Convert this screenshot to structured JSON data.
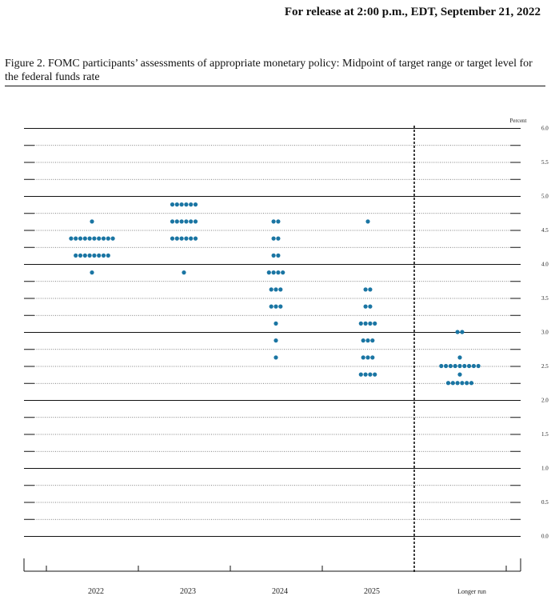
{
  "header": {
    "release_text": "For release at 2:00 p.m., EDT, September 21, 2022"
  },
  "figure": {
    "caption": "Figure 2. FOMC participants’ assessments of appropriate monetary policy: Midpoint of target range or target level for the federal funds rate"
  },
  "colors": {
    "dot": "#1a75a3",
    "axis": "#111111",
    "background": "#ffffff"
  },
  "chart_data": {
    "type": "scatter",
    "title": "",
    "xlabel": "",
    "ylabel": "Percent",
    "ylim": [
      0.0,
      6.0
    ],
    "y_ticks": [
      "6.0",
      "5.5",
      "5.0",
      "4.5",
      "4.0",
      "3.5",
      "3.0",
      "2.5",
      "2.0",
      "1.5",
      "1.0",
      "0.5",
      "0.0"
    ],
    "categories": [
      "2022",
      "2023",
      "2024",
      "2025",
      "Longer run"
    ],
    "grid": true,
    "dashed_divider_before": "Longer run",
    "dots": [
      {
        "category": "2022",
        "rates": [
          {
            "value": 4.625,
            "count": 1
          },
          {
            "value": 4.375,
            "count": 10
          },
          {
            "value": 4.125,
            "count": 8
          },
          {
            "value": 3.875,
            "count": 1
          }
        ]
      },
      {
        "category": "2023",
        "rates": [
          {
            "value": 4.875,
            "count": 6
          },
          {
            "value": 4.625,
            "count": 6
          },
          {
            "value": 4.375,
            "count": 6
          },
          {
            "value": 3.875,
            "count": 1
          }
        ]
      },
      {
        "category": "2024",
        "rates": [
          {
            "value": 4.625,
            "count": 2
          },
          {
            "value": 4.375,
            "count": 2
          },
          {
            "value": 4.125,
            "count": 2
          },
          {
            "value": 3.875,
            "count": 4
          },
          {
            "value": 3.625,
            "count": 3
          },
          {
            "value": 3.375,
            "count": 3
          },
          {
            "value": 3.125,
            "count": 1
          },
          {
            "value": 2.875,
            "count": 1
          },
          {
            "value": 2.625,
            "count": 1
          }
        ]
      },
      {
        "category": "2025",
        "rates": [
          {
            "value": 4.625,
            "count": 1
          },
          {
            "value": 3.625,
            "count": 2
          },
          {
            "value": 3.375,
            "count": 2
          },
          {
            "value": 3.125,
            "count": 4
          },
          {
            "value": 2.875,
            "count": 3
          },
          {
            "value": 2.625,
            "count": 3
          },
          {
            "value": 2.375,
            "count": 4
          }
        ]
      },
      {
        "category": "Longer run",
        "rates": [
          {
            "value": 3.0,
            "count": 2
          },
          {
            "value": 2.625,
            "count": 1
          },
          {
            "value": 2.5,
            "count": 9
          },
          {
            "value": 2.375,
            "count": 1
          },
          {
            "value": 2.25,
            "count": 6
          }
        ]
      }
    ]
  }
}
